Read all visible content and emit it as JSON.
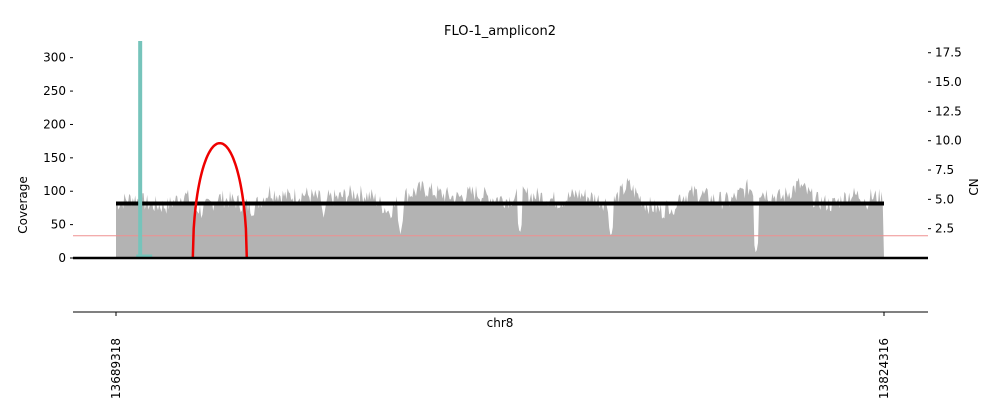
{
  "chart_data": {
    "type": "area",
    "title": "FLO-1_amplicon2",
    "xlabel": "chr8",
    "ylabel_left": "Coverage",
    "ylabel_right": "CN",
    "x_range": [
      13689318,
      13824316
    ],
    "x_tick_labels": [
      "13689318",
      "13824316"
    ],
    "y_left_range": [
      0,
      325
    ],
    "y_left_ticks": [
      0,
      50,
      100,
      150,
      200,
      250,
      300
    ],
    "y_right_range": [
      0,
      18.5
    ],
    "y_right_ticks": [
      "2.5",
      "5.0",
      "7.5",
      "10.0",
      "12.5",
      "15.0",
      "17.5"
    ],
    "coverage_x": [
      13689318,
      13692318,
      13695318,
      13698318,
      13701318,
      13704318,
      13707318,
      13710318,
      13713318,
      13716318,
      13719318,
      13722318,
      13725318,
      13728318,
      13731318,
      13734318,
      13737318,
      13740318,
      13743318,
      13746318,
      13749318,
      13752318,
      13755318,
      13758318,
      13761318,
      13764318,
      13767318,
      13770318,
      13773318,
      13776318,
      13779318,
      13782318,
      13785318,
      13788318,
      13791318,
      13794318,
      13797318,
      13800318,
      13803318,
      13806318,
      13809318,
      13812318,
      13815318,
      13818318,
      13821318,
      13824316
    ],
    "coverage_values": [
      82,
      90,
      80,
      78,
      95,
      70,
      90,
      85,
      75,
      100,
      92,
      96,
      88,
      90,
      98,
      92,
      70,
      95,
      104,
      96,
      90,
      98,
      90,
      88,
      95,
      92,
      85,
      96,
      90,
      80,
      110,
      82,
      70,
      92,
      98,
      88,
      85,
      105,
      98,
      90,
      110,
      86,
      80,
      95,
      92,
      90
    ],
    "coverage_dips": [
      {
        "x": 13703318,
        "value": 65
      },
      {
        "x": 13725818,
        "value": 60
      },
      {
        "x": 13739318,
        "value": 35
      },
      {
        "x": 13760318,
        "value": 35
      },
      {
        "x": 13776318,
        "value": 30
      },
      {
        "x": 13787318,
        "value": 60
      },
      {
        "x": 13801818,
        "value": 5
      },
      {
        "x": 13821318,
        "value": 70
      }
    ],
    "copy_number": {
      "x_start": 13689318,
      "x_end": 13824316,
      "value": 4.65
    },
    "cn_threshold": 1.9,
    "breakpoint": {
      "x": 13693568,
      "coverage": 325,
      "label_color": "#76c4bb"
    },
    "discordant_arc": {
      "x_start": 13702818,
      "x_end": 13712318,
      "peak": 172
    },
    "colors": {
      "coverage": "#b3b3b3",
      "copy_number": "#000000",
      "arc": "#ee0000",
      "threshold": "#ef9090",
      "breakpoint": "#76c4bb"
    }
  }
}
